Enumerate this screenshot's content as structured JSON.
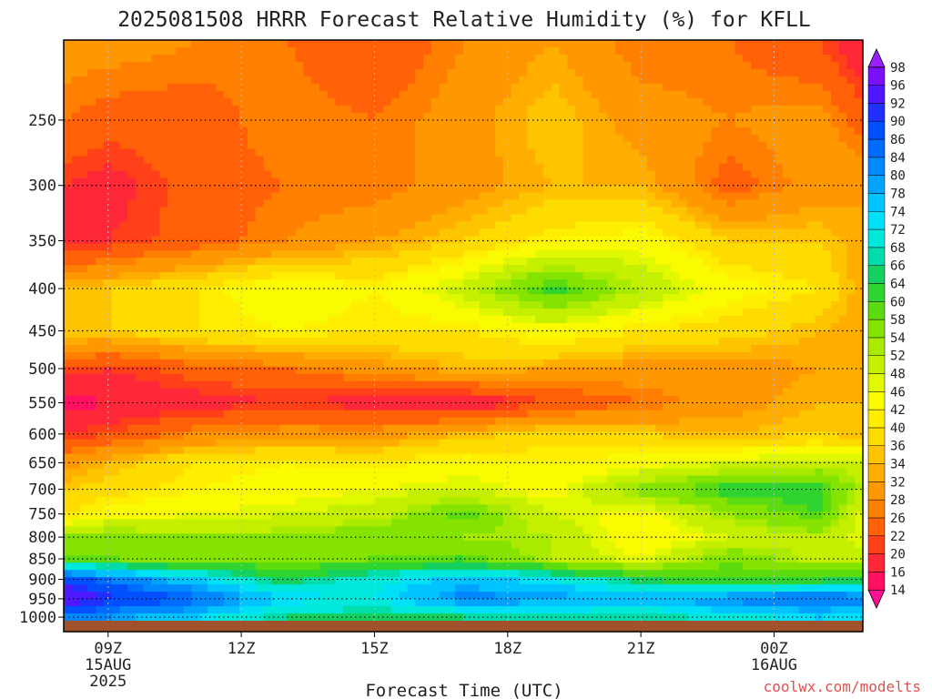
{
  "chart_data": {
    "type": "heatmap",
    "title": "2025081508 HRRR Forecast Relative Humidity (%) for KFLL",
    "xlabel": "Forecast Time (UTC)",
    "ylabel": "",
    "watermark": "coolwx.com/modelts",
    "x_ticks": [
      {
        "label": "09Z",
        "sub1": "15AUG",
        "sub2": "2025",
        "hour": 9
      },
      {
        "label": "12Z",
        "sub1": "",
        "sub2": "",
        "hour": 12
      },
      {
        "label": "15Z",
        "sub1": "",
        "sub2": "",
        "hour": 15
      },
      {
        "label": "18Z",
        "sub1": "",
        "sub2": "",
        "hour": 18
      },
      {
        "label": "21Z",
        "sub1": "",
        "sub2": "",
        "hour": 21
      },
      {
        "label": "00Z",
        "sub1": "16AUG",
        "sub2": "",
        "hour": 24
      }
    ],
    "x_range_hours": [
      8,
      26
    ],
    "y_ticks": [
      250,
      300,
      350,
      400,
      450,
      500,
      550,
      600,
      650,
      700,
      750,
      800,
      850,
      900,
      950,
      1000
    ],
    "y_range_hpa": [
      200,
      1010
    ],
    "y_scale": "log",
    "grid": true,
    "colorbar": {
      "levels": [
        14,
        16,
        20,
        22,
        26,
        28,
        32,
        34,
        36,
        40,
        42,
        46,
        48,
        52,
        54,
        58,
        60,
        64,
        66,
        68,
        72,
        74,
        78,
        80,
        84,
        86,
        90,
        92,
        96,
        98
      ],
      "colors": [
        "#ff1090",
        "#ff1060",
        "#ff2838",
        "#ff4018",
        "#ff6008",
        "#ff8000",
        "#ff9800",
        "#ffae00",
        "#ffc400",
        "#ffdc00",
        "#ffee00",
        "#fafa00",
        "#e0f800",
        "#c4f000",
        "#a8ea00",
        "#84e400",
        "#5cdc10",
        "#30d430",
        "#14d060",
        "#00dcaa",
        "#00e8dc",
        "#00e0f8",
        "#00c4ff",
        "#00a4ff",
        "#0088ff",
        "#006cff",
        "#0050ff",
        "#2030ff",
        "#5018ff",
        "#7a10ff",
        "#9a20ff"
      ]
    },
    "pressure_levels": [
      200,
      250,
      300,
      350,
      400,
      450,
      500,
      550,
      600,
      650,
      700,
      750,
      800,
      850,
      900,
      950,
      1000
    ],
    "forecast_hours": [
      8,
      9,
      11,
      13,
      15,
      17,
      19,
      21,
      23,
      25,
      26
    ],
    "humidity": [
      [
        30,
        30,
        28,
        26,
        22,
        28,
        32,
        26,
        26,
        22,
        16
      ],
      [
        26,
        24,
        24,
        28,
        26,
        30,
        36,
        30,
        28,
        30,
        24
      ],
      [
        20,
        18,
        24,
        26,
        26,
        30,
        34,
        34,
        24,
        30,
        32
      ],
      [
        18,
        20,
        24,
        28,
        32,
        36,
        42,
        44,
        36,
        36,
        32
      ],
      [
        34,
        36,
        40,
        46,
        42,
        50,
        62,
        52,
        44,
        40,
        32
      ],
      [
        36,
        36,
        40,
        42,
        40,
        40,
        44,
        40,
        38,
        34,
        32
      ],
      [
        22,
        20,
        24,
        26,
        30,
        34,
        32,
        30,
        30,
        32,
        32
      ],
      [
        14,
        16,
        18,
        20,
        18,
        16,
        22,
        26,
        30,
        34,
        34
      ],
      [
        20,
        22,
        28,
        30,
        30,
        34,
        38,
        36,
        34,
        36,
        34
      ],
      [
        30,
        34,
        40,
        42,
        40,
        44,
        42,
        44,
        48,
        50,
        50
      ],
      [
        36,
        38,
        42,
        44,
        46,
        48,
        44,
        56,
        62,
        62,
        52
      ],
      [
        40,
        44,
        46,
        48,
        50,
        60,
        48,
        44,
        54,
        60,
        46
      ],
      [
        54,
        56,
        54,
        54,
        58,
        54,
        52,
        42,
        48,
        52,
        46
      ],
      [
        58,
        58,
        56,
        56,
        58,
        60,
        52,
        46,
        58,
        50,
        50
      ],
      [
        90,
        84,
        74,
        64,
        70,
        76,
        72,
        64,
        60,
        62,
        64
      ],
      [
        96,
        92,
        86,
        74,
        72,
        82,
        80,
        78,
        82,
        86,
        82
      ],
      [
        84,
        80,
        74,
        66,
        64,
        66,
        68,
        66,
        70,
        74,
        72
      ]
    ]
  }
}
